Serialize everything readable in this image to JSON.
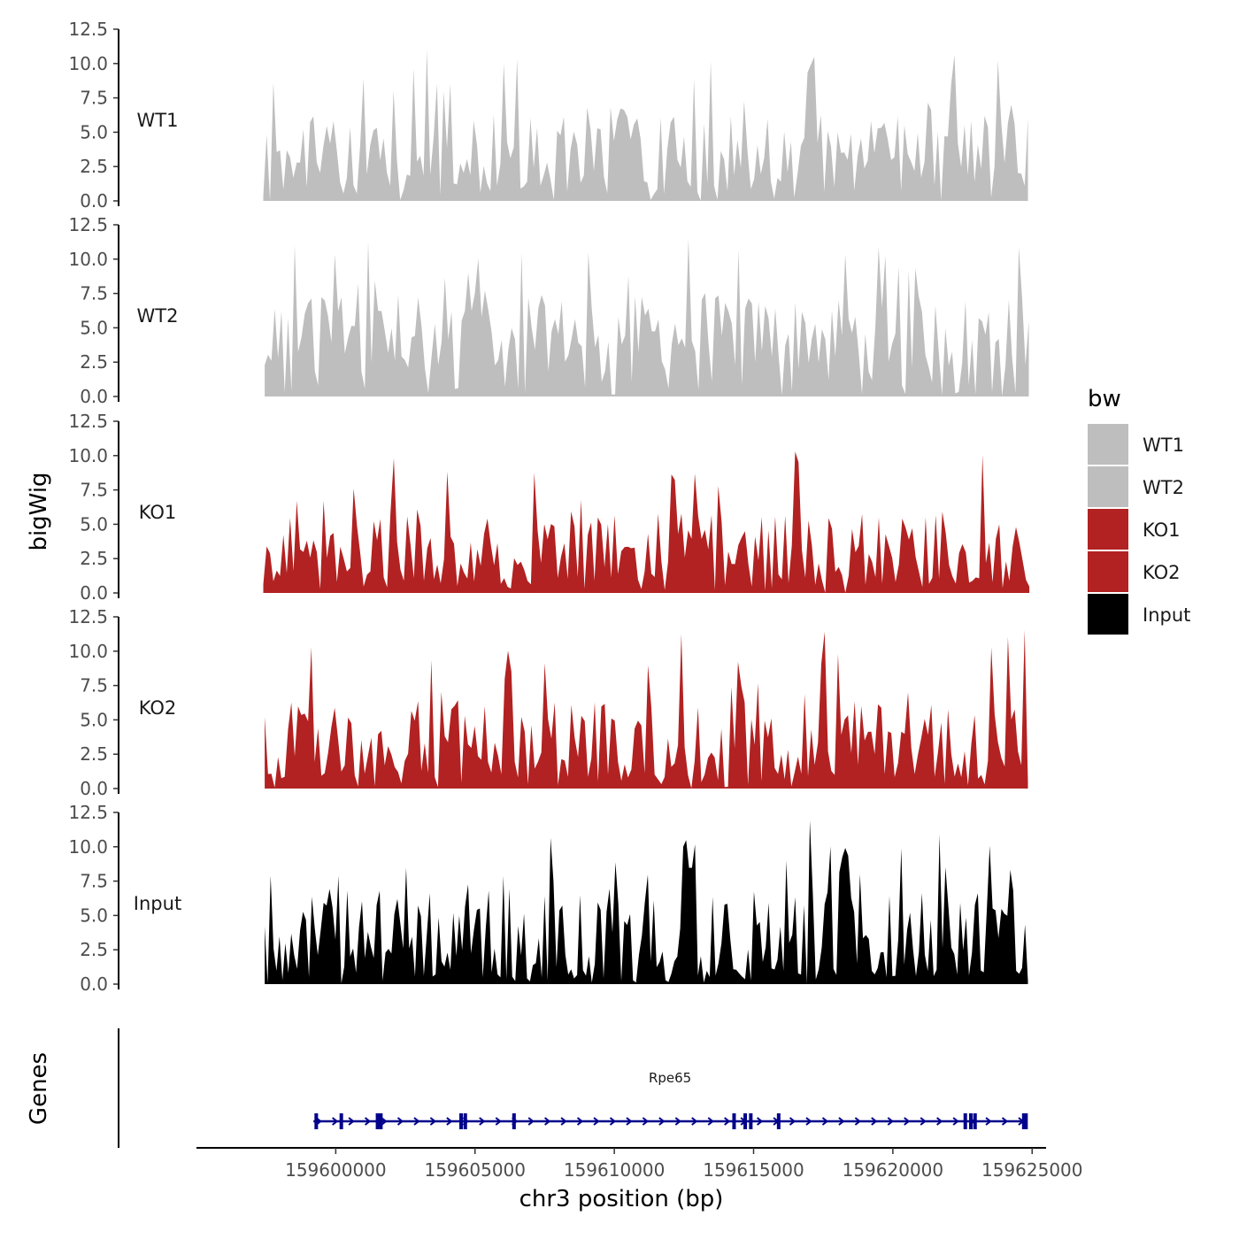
{
  "chart_data": {
    "type": "area",
    "y_axis_title": "bigWig",
    "x_axis_title": "chr3 position (bp)",
    "y_range": [
      0,
      12.5
    ],
    "y_ticks": [
      "0.0",
      "2.5",
      "5.0",
      "7.5",
      "10.0",
      "12.5"
    ],
    "x_range": [
      159595000,
      159625500
    ],
    "x_ticks": [
      {
        "value": 159600000,
        "label": "159600000"
      },
      {
        "value": 159605000,
        "label": "159605000"
      },
      {
        "value": 159610000,
        "label": "159610000"
      },
      {
        "value": 159615000,
        "label": "159615000"
      },
      {
        "value": 159620000,
        "label": "159620000"
      },
      {
        "value": 159625000,
        "label": "159625000"
      }
    ],
    "legend": {
      "title": "bw",
      "position": "right",
      "entries": [
        {
          "label": "WT1",
          "color": "#bebebe"
        },
        {
          "label": "WT2",
          "color": "#bebebe"
        },
        {
          "label": "KO1",
          "color": "#b22222"
        },
        {
          "label": "KO2",
          "color": "#b22222"
        },
        {
          "label": "Input",
          "color": "#000000"
        }
      ]
    },
    "series": [
      {
        "name": "WT1",
        "color": "#bebebe",
        "x_start": 159597400,
        "x_end": 159624850,
        "n_points": 230,
        "seed": 11,
        "base": 3.6,
        "spread": 2.6,
        "peak_max": 11.2
      },
      {
        "name": "WT2",
        "color": "#bebebe",
        "x_start": 159597450,
        "x_end": 159624880,
        "n_points": 230,
        "seed": 23,
        "base": 4.6,
        "spread": 2.8,
        "peak_max": 11.8
      },
      {
        "name": "KO1",
        "color": "#b22222",
        "x_start": 159597400,
        "x_end": 159624900,
        "n_points": 230,
        "seed": 37,
        "base": 3.2,
        "spread": 2.6,
        "peak_max": 10.3
      },
      {
        "name": "KO2",
        "color": "#b22222",
        "x_start": 159597450,
        "x_end": 159624850,
        "n_points": 230,
        "seed": 41,
        "base": 3.6,
        "spread": 2.8,
        "peak_max": 12.0
      },
      {
        "name": "Input",
        "color": "#000000",
        "x_start": 159597450,
        "x_end": 159624850,
        "n_points": 260,
        "seed": 53,
        "base": 3.6,
        "spread": 3.4,
        "peak_max": 12.0
      }
    ],
    "genes_track": {
      "label": "Genes",
      "gene_name": "Rpe65",
      "color": "#00008b",
      "start": 159599200,
      "end": 159624800,
      "strand": "+",
      "exons": [
        159599300,
        159600200,
        159601500,
        159601620,
        159604500,
        159604650,
        159606400,
        159614300,
        159614700,
        159614900,
        159615900,
        159622600,
        159622800,
        159622950,
        159624700,
        159624780
      ]
    }
  }
}
